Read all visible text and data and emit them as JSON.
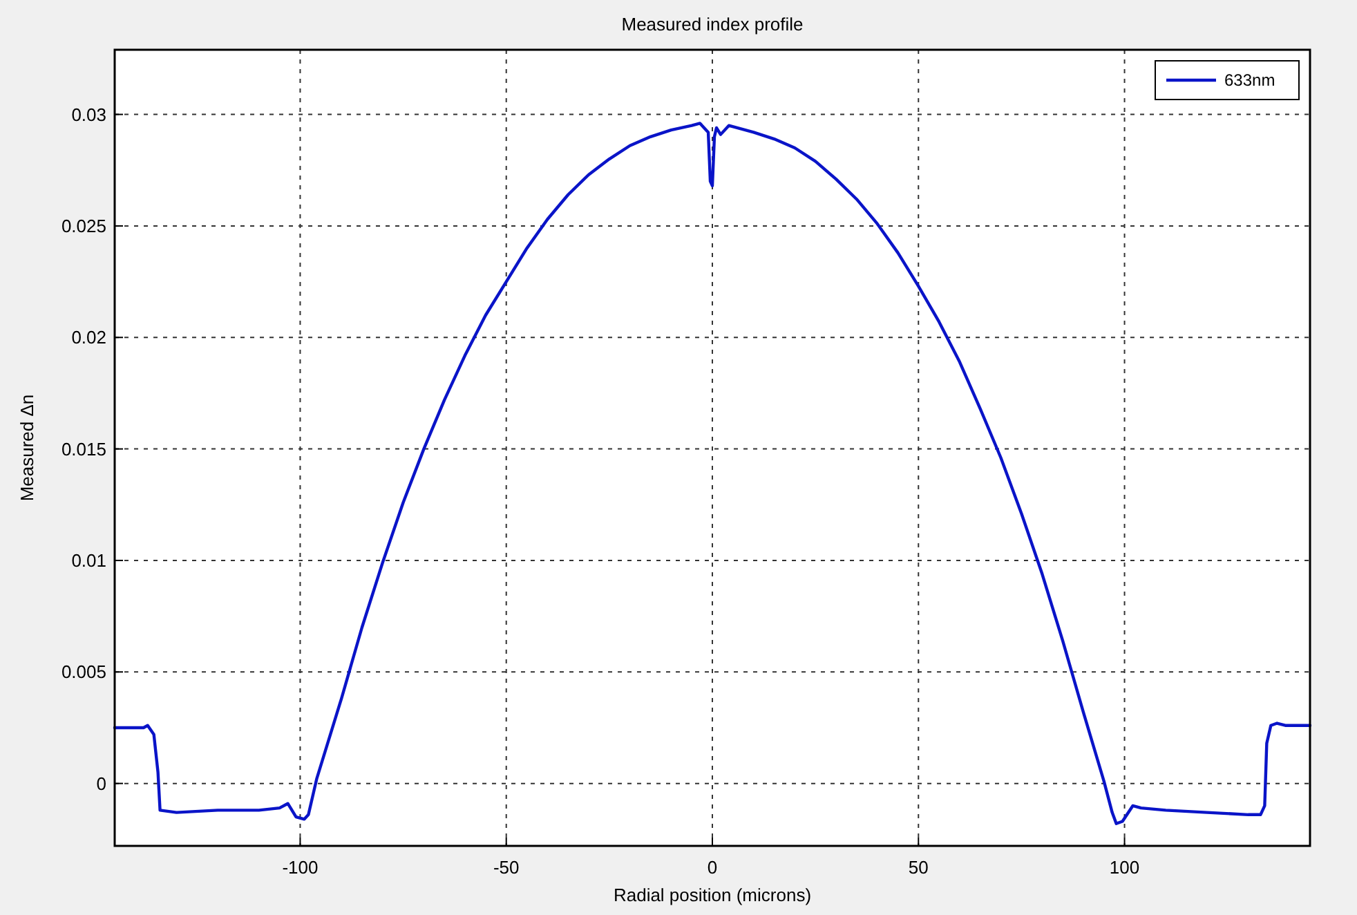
{
  "chart_data": {
    "type": "line",
    "title": "Measured index profile",
    "xlabel": "Radial position (microns)",
    "ylabel": "Measured Δn",
    "x": [
      -145,
      -138,
      -137,
      -135.5,
      -134.5,
      -134,
      -130,
      -120,
      -110,
      -105,
      -103,
      -101,
      -99,
      -98,
      -96,
      -90,
      -85,
      -80,
      -75,
      -70,
      -65,
      -60,
      -55,
      -50,
      -45,
      -40,
      -35,
      -30,
      -25,
      -20,
      -15,
      -10,
      -5,
      -3,
      -2,
      -1,
      -0.5,
      0,
      0.5,
      1,
      2,
      4,
      10,
      15,
      20,
      25,
      30,
      35,
      40,
      45,
      50,
      55,
      60,
      65,
      70,
      75,
      80,
      85,
      90,
      95,
      97,
      98,
      99.5,
      102,
      104,
      110,
      120,
      130,
      133,
      134,
      134.5,
      135.5,
      137,
      139,
      145
    ],
    "series": [
      {
        "name": "633nm",
        "color": "#0a14c8",
        "values": [
          0.0025,
          0.0025,
          0.0026,
          0.0022,
          0.0005,
          -0.0012,
          -0.0013,
          -0.0012,
          -0.0012,
          -0.0011,
          -0.0009,
          -0.0015,
          -0.0016,
          -0.0014,
          0.0002,
          0.0038,
          0.007,
          0.0099,
          0.0126,
          0.015,
          0.0172,
          0.0192,
          0.021,
          0.0225,
          0.024,
          0.0253,
          0.0264,
          0.0273,
          0.028,
          0.0286,
          0.029,
          0.0293,
          0.0295,
          0.0296,
          0.0294,
          0.0292,
          0.027,
          0.0268,
          0.029,
          0.0294,
          0.0291,
          0.0295,
          0.0292,
          0.0289,
          0.0285,
          0.0279,
          0.0271,
          0.0262,
          0.0251,
          0.0238,
          0.0223,
          0.0207,
          0.0189,
          0.0168,
          0.0146,
          0.0121,
          0.0094,
          0.0064,
          0.0032,
          0.0001,
          -0.0013,
          -0.0018,
          -0.0017,
          -0.001,
          -0.0011,
          -0.0012,
          -0.0013,
          -0.0014,
          -0.0014,
          -0.001,
          0.0018,
          0.0026,
          0.0027,
          0.0026,
          0.0026
        ]
      }
    ],
    "xlim": [
      -145,
      145
    ],
    "xticks": [
      -100,
      -50,
      0,
      50,
      100
    ],
    "ylim": [
      -0.0028,
      0.0329
    ],
    "yticks": [
      0,
      0.005,
      0.01,
      0.015,
      0.02,
      0.025,
      0.03
    ],
    "grid": true,
    "legend": "top right",
    "line_style": "solid",
    "marker": "none"
  }
}
